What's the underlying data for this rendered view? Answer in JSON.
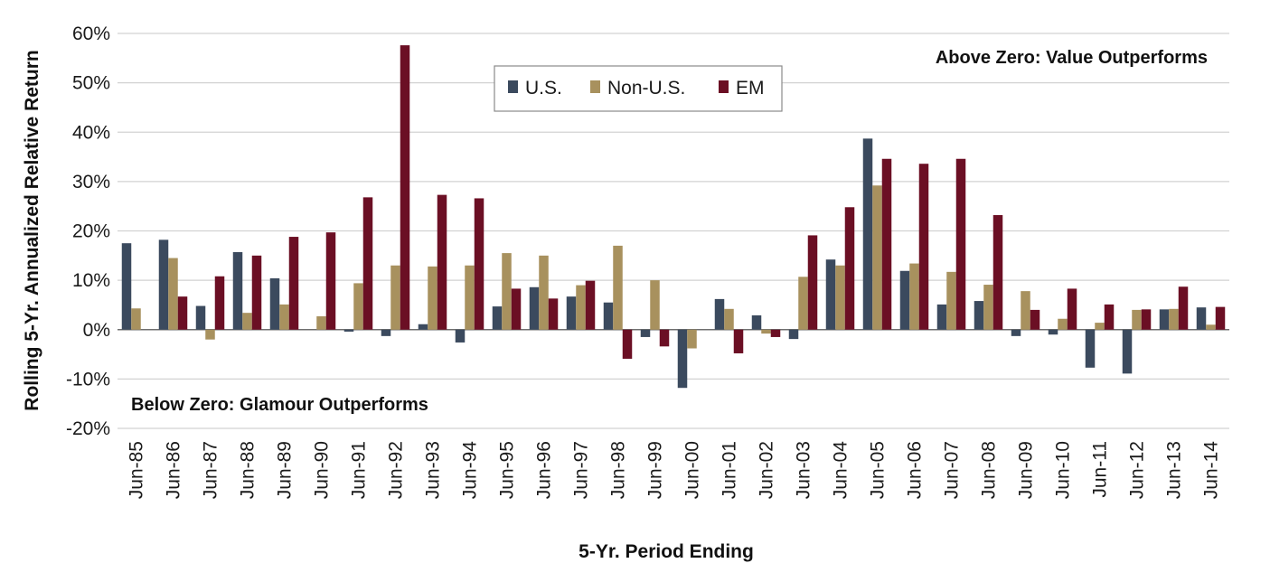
{
  "chart_data": {
    "type": "bar",
    "categories": [
      "Jun-85",
      "Jun-86",
      "Jun-87",
      "Jun-88",
      "Jun-89",
      "Jun-90",
      "Jun-91",
      "Jun-92",
      "Jun-93",
      "Jun-94",
      "Jun-95",
      "Jun-96",
      "Jun-97",
      "Jun-98",
      "Jun-99",
      "Jun-00",
      "Jun-01",
      "Jun-02",
      "Jun-03",
      "Jun-04",
      "Jun-05",
      "Jun-06",
      "Jun-07",
      "Jun-08",
      "Jun-09",
      "Jun-10",
      "Jun-11",
      "Jun-12",
      "Jun-13",
      "Jun-14"
    ],
    "series": [
      {
        "name": "U.S.",
        "color": "#3b4a5e",
        "values": [
          17.5,
          18.2,
          4.8,
          15.7,
          10.4,
          null,
          -0.4,
          -1.3,
          1.1,
          -2.6,
          4.7,
          8.6,
          6.7,
          5.5,
          -1.5,
          -11.8,
          6.2,
          2.9,
          -1.9,
          14.2,
          38.7,
          11.9,
          5.1,
          5.8,
          -1.3,
          -1.0,
          -7.7,
          -8.9,
          4.1,
          4.5
        ]
      },
      {
        "name": "Non-U.S.",
        "color": "#a8915e",
        "values": [
          4.3,
          14.5,
          -2.0,
          3.4,
          5.1,
          2.7,
          9.4,
          13.0,
          12.8,
          13.0,
          15.5,
          15.0,
          9.0,
          17.0,
          10.0,
          -3.8,
          4.2,
          -0.8,
          10.7,
          13.0,
          29.2,
          13.4,
          11.7,
          9.1,
          7.8,
          2.2,
          1.4,
          4.0,
          4.2,
          1.0
        ]
      },
      {
        "name": "EM",
        "color": "#6b0f24",
        "values": [
          null,
          6.7,
          10.8,
          15.0,
          18.8,
          19.7,
          26.8,
          57.6,
          27.3,
          26.6,
          8.3,
          6.3,
          9.9,
          -5.9,
          -3.4,
          null,
          -4.8,
          -1.5,
          19.1,
          24.8,
          34.6,
          33.6,
          34.6,
          23.2,
          4.0,
          8.3,
          5.1,
          4.1,
          8.7,
          4.6
        ]
      }
    ],
    "xlabel": "5-Yr. Period Ending",
    "ylabel": "Rolling 5-Yr. Annualized Relative Return",
    "ylim": [
      -20,
      60
    ],
    "yticks": [
      -20,
      -10,
      0,
      10,
      20,
      30,
      40,
      50,
      60
    ],
    "ytick_labels": [
      "-20%",
      "-10%",
      "0%",
      "10%",
      "20%",
      "30%",
      "40%",
      "50%",
      "60%"
    ],
    "grid": true,
    "legend_position": "top-center",
    "annotations": {
      "above": "Above Zero: Value Outperforms",
      "below": "Below Zero: Glamour Outperforms"
    }
  }
}
